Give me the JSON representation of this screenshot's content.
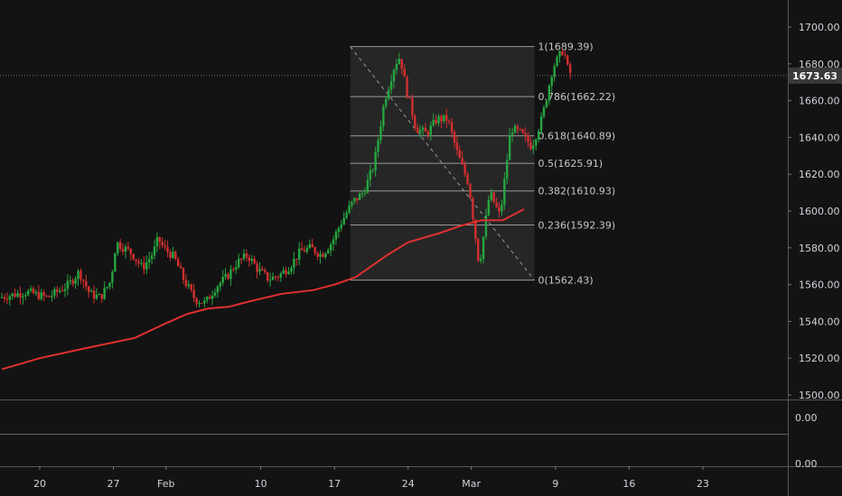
{
  "colors": {
    "background": "#131313",
    "up": "#26a640",
    "down": "#d32f2f",
    "ma": "#e03030",
    "fib_fill": "#262626",
    "fib_line": "#9a9a9a",
    "axis_text": "#d1d4dc",
    "grid_pane": "#555555"
  },
  "chart_data": {
    "type": "candlestick",
    "title": "",
    "xlabel": "",
    "ylabel": "",
    "ylim": [
      1500,
      1710
    ],
    "grid": false,
    "y_ticks": [
      "1700.00",
      "1680.00",
      "1660.00",
      "1640.00",
      "1620.00",
      "1600.00",
      "1580.00",
      "1560.00",
      "1540.00",
      "1520.00",
      "1500.00"
    ],
    "x_ticks": [
      {
        "label": "20",
        "day": 0
      },
      {
        "label": "27",
        "day": 7
      },
      {
        "label": "Feb",
        "day": 12
      },
      {
        "label": "10",
        "day": 21
      },
      {
        "label": "17",
        "day": 28
      },
      {
        "label": "24",
        "day": 35
      },
      {
        "label": "Mar",
        "day": 41
      },
      {
        "label": "9",
        "day": 49
      },
      {
        "label": "16",
        "day": 56
      },
      {
        "label": "23",
        "day": 63
      }
    ],
    "last_price": "1673.63",
    "last_price_value": 1673.63,
    "indicator_pane": {
      "ticks": [
        "0.00",
        "0.00"
      ]
    },
    "fib_retracement": {
      "start_day": 29.5,
      "end_day": 47,
      "levels": [
        {
          "label": "1(1689.39)",
          "value": 1689.39
        },
        {
          "label": "0.786(1662.22)",
          "value": 1662.22
        },
        {
          "label": "0.618(1640.89)",
          "value": 1640.89
        },
        {
          "label": "0.5(1625.91)",
          "value": 1625.91
        },
        {
          "label": "0.382(1610.93)",
          "value": 1610.93
        },
        {
          "label": "0.236(1592.39)",
          "value": 1592.39
        },
        {
          "label": "0(1562.43)",
          "value": 1562.43
        }
      ]
    },
    "ma_series": [
      [
        -3.6,
        1514
      ],
      [
        0,
        1520
      ],
      [
        4,
        1525
      ],
      [
        9,
        1531
      ],
      [
        12,
        1539
      ],
      [
        14,
        1544
      ],
      [
        16,
        1547
      ],
      [
        18,
        1548
      ],
      [
        20,
        1551
      ],
      [
        23,
        1555
      ],
      [
        26,
        1557
      ],
      [
        28,
        1560
      ],
      [
        30,
        1564
      ],
      [
        33,
        1576
      ],
      [
        35,
        1583
      ],
      [
        38,
        1588
      ],
      [
        40,
        1592
      ],
      [
        42,
        1595
      ],
      [
        44,
        1595
      ],
      [
        46,
        1601
      ]
    ],
    "price_path": [
      [
        -3.6,
        1553
      ],
      [
        -1,
        1556
      ],
      [
        1,
        1553
      ],
      [
        3,
        1560
      ],
      [
        4,
        1567
      ],
      [
        5,
        1555
      ],
      [
        6,
        1553
      ],
      [
        7,
        1562
      ],
      [
        7.5,
        1583
      ],
      [
        9,
        1577
      ],
      [
        10,
        1569
      ],
      [
        11,
        1577
      ],
      [
        11.5,
        1585
      ],
      [
        12,
        1580
      ],
      [
        13,
        1575
      ],
      [
        14,
        1562
      ],
      [
        15,
        1552
      ],
      [
        16,
        1550
      ],
      [
        17,
        1559
      ],
      [
        18,
        1564
      ],
      [
        19,
        1572
      ],
      [
        20,
        1576
      ],
      [
        21,
        1568
      ],
      [
        22,
        1563
      ],
      [
        23,
        1565
      ],
      [
        24,
        1570
      ],
      [
        25,
        1578
      ],
      [
        26,
        1580
      ],
      [
        27,
        1576
      ],
      [
        28,
        1583
      ],
      [
        29,
        1595
      ],
      [
        30,
        1605
      ],
      [
        31,
        1610
      ],
      [
        32,
        1625
      ],
      [
        33,
        1660
      ],
      [
        34,
        1680
      ],
      [
        34.5,
        1684
      ],
      [
        35,
        1668
      ],
      [
        36,
        1645
      ],
      [
        37,
        1642
      ],
      [
        38,
        1650
      ],
      [
        39,
        1650
      ],
      [
        40,
        1630
      ],
      [
        41,
        1615
      ],
      [
        42,
        1570
      ],
      [
        43,
        1610
      ],
      [
        44,
        1597
      ],
      [
        45,
        1645
      ],
      [
        46,
        1642
      ],
      [
        47,
        1635
      ],
      [
        48,
        1651
      ],
      [
        49,
        1678
      ],
      [
        50,
        1688
      ],
      [
        50.5,
        1675
      ]
    ]
  }
}
